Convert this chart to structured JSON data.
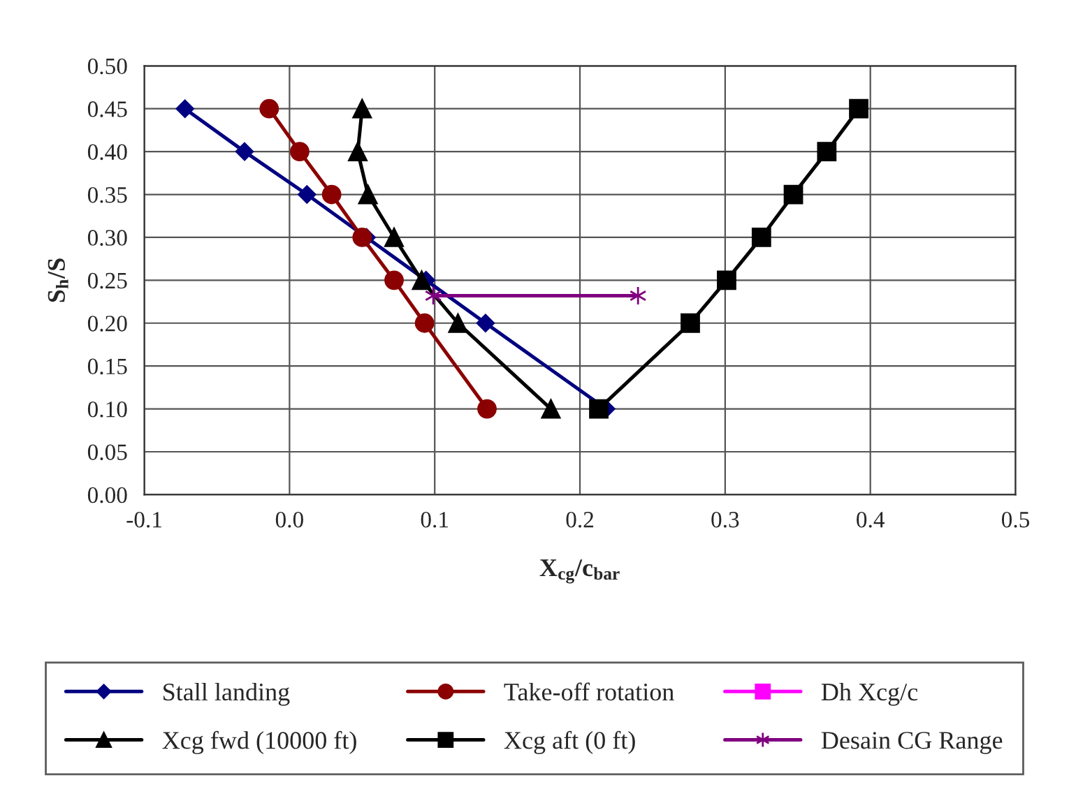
{
  "chart_data": {
    "type": "line",
    "xlabel": "X$_{cg}$/c$_{bar}$",
    "ylabel": "S$_{h}$/S",
    "xlim": [
      -0.1,
      0.5
    ],
    "xticks": [
      -0.1,
      {
        "value": 0,
        "label": "0.0"
      },
      0.1,
      0.2,
      0.3,
      0.4,
      0.5
    ],
    "ylim": [
      0,
      0.5
    ],
    "yticks": [
      {
        "value": 0,
        "label": "0.00"
      },
      {
        "value": 0.05,
        "label": "0.05"
      },
      {
        "value": 0.1,
        "label": "0.10"
      },
      {
        "value": 0.15,
        "label": "0.15"
      },
      {
        "value": 0.2,
        "label": "0.20"
      },
      {
        "value": 0.25,
        "label": "0.25"
      },
      {
        "value": 0.3,
        "label": "0.30"
      },
      {
        "value": 0.35,
        "label": "0.35"
      },
      {
        "value": 0.4,
        "label": "0.40"
      },
      {
        "value": 0.45,
        "label": "0.45"
      },
      {
        "value": 0.5,
        "label": "0.50"
      }
    ],
    "grid": true,
    "legend": "bottom",
    "line_style": "solid",
    "series": [
      {
        "name": "Stall landing",
        "color": "#000080",
        "marker": "diamond",
        "x": [
          -0.072,
          -0.031,
          0.012,
          0.053,
          0.094,
          0.135,
          0.218
        ],
        "values": [
          0.45,
          0.4,
          0.35,
          0.3,
          0.25,
          0.2,
          0.1
        ]
      },
      {
        "name": "Take-off rotation",
        "color": "#8b0000",
        "marker": "circle",
        "x": [
          -0.014,
          0.007,
          0.029,
          0.05,
          0.072,
          0.093,
          0.136
        ],
        "values": [
          0.45,
          0.4,
          0.35,
          0.3,
          0.25,
          0.2,
          0.1
        ]
      },
      {
        "name": "Dh Xcg/c",
        "color": "#ff00ff",
        "marker": "square"
      },
      {
        "name": "Xcg fwd (10000 ft)",
        "color": "#000000",
        "marker": "triangle",
        "x": [
          0.05,
          0.047,
          0.054,
          0.072,
          0.091,
          0.116,
          0.18
        ],
        "values": [
          0.45,
          0.4,
          0.35,
          0.3,
          0.25,
          0.2,
          0.1
        ]
      },
      {
        "name": "Xcg aft (0 ft)",
        "color": "#000000",
        "marker": "square",
        "x": [
          0.213,
          0.276,
          0.301,
          0.325,
          0.347,
          0.37,
          0.392
        ],
        "values": [
          0.1,
          0.2,
          0.25,
          0.3,
          0.35,
          0.4,
          0.45
        ]
      },
      {
        "name": "Desain CG Range",
        "color": "#800080",
        "marker": "cross",
        "x": [
          0.099,
          0.24
        ],
        "values": [
          0.232,
          0.232
        ]
      }
    ]
  }
}
